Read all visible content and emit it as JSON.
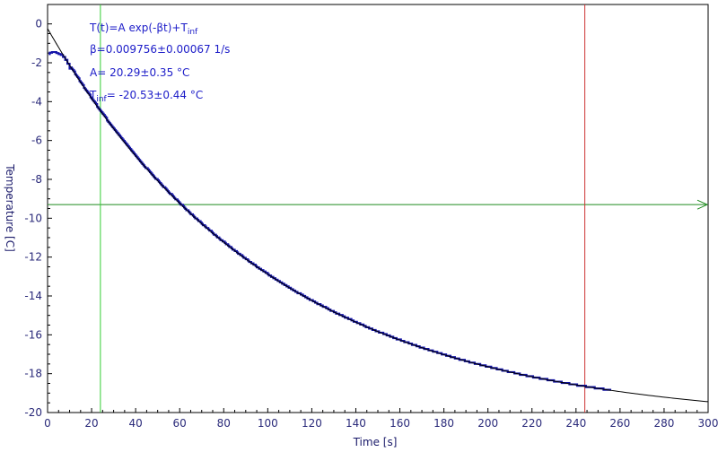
{
  "chart_data": {
    "type": "scatter",
    "xlabel": "Time [s]",
    "ylabel": "Temperature [C]",
    "xlim": [
      0,
      300
    ],
    "ylim": [
      -20,
      1
    ],
    "xticks": [
      "0",
      "20",
      "40",
      "60",
      "80",
      "100",
      "120",
      "140",
      "160",
      "180",
      "200",
      "220",
      "240",
      "260",
      "280",
      "300"
    ],
    "yticks": [
      "0",
      "-2",
      "-4",
      "-6",
      "-8",
      "-10",
      "-12",
      "-14",
      "-16",
      "-18",
      "-20"
    ],
    "grid": false,
    "annotations": {
      "model_main": "T(t)=A exp(-βt)+T",
      "model_sub": "inf",
      "beta": "β=0.009756±0.00067 1/s",
      "amplitude": "A= 20.29±0.35 °C",
      "tinf_main": "T",
      "tinf_sub": "inf",
      "tinf_value": "= -20.53±0.44 °C"
    },
    "fit": {
      "A": 20.29,
      "beta": 0.009756,
      "T_inf": -20.53
    },
    "measured_series": {
      "x_start": 0,
      "x_end": 256,
      "initial_points": [
        [
          0.5,
          -1.55
        ],
        [
          1,
          -1.48
        ],
        [
          2,
          -1.45
        ],
        [
          3,
          -1.45
        ],
        [
          4,
          -1.5
        ],
        [
          5,
          -1.55
        ],
        [
          6,
          -1.6
        ],
        [
          7,
          -1.7
        ],
        [
          8,
          -1.85
        ],
        [
          9,
          -2.05
        ],
        [
          10,
          -2.3
        ]
      ]
    },
    "cursors": {
      "horizontal_y": -9.3,
      "vertical_green_x": 24,
      "vertical_red_x": 244
    },
    "colors": {
      "data": "#1414a8",
      "fit": "#000000",
      "cursor_h": "#1f8a1f",
      "cursor_green": "#33cc33",
      "cursor_red": "#cc3333",
      "axis": "#000000"
    }
  }
}
